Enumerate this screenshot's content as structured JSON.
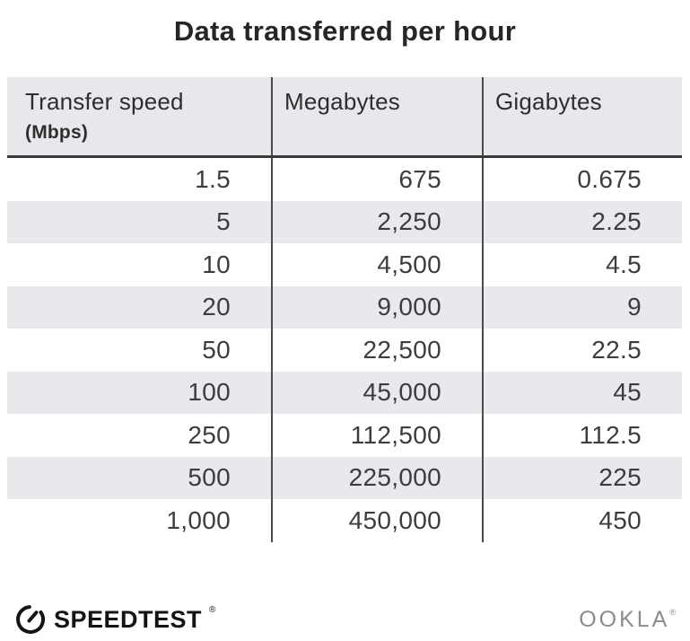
{
  "title": "Data transferred per hour",
  "table": {
    "headers": {
      "col1_line1": "Transfer speed",
      "col1_line2": "(Mbps)",
      "col2": "Megabytes",
      "col3": "Gigabytes"
    },
    "rows": [
      [
        "1.5",
        "675",
        "0.675"
      ],
      [
        "5",
        "2,250",
        "2.25"
      ],
      [
        "10",
        "4,500",
        "4.5"
      ],
      [
        "20",
        "9,000",
        "9"
      ],
      [
        "50",
        "22,500",
        "22.5"
      ],
      [
        "100",
        "45,000",
        "45"
      ],
      [
        "250",
        "112,500",
        "112.5"
      ],
      [
        "500",
        "225,000",
        "225"
      ],
      [
        "1,000",
        "450,000",
        "450"
      ]
    ]
  },
  "chart_data": {
    "type": "table",
    "title": "Data transferred per hour",
    "columns": [
      "Transfer speed (Mbps)",
      "Megabytes",
      "Gigabytes"
    ],
    "rows": [
      [
        1.5,
        675,
        0.675
      ],
      [
        5,
        2250,
        2.25
      ],
      [
        10,
        4500,
        4.5
      ],
      [
        20,
        9000,
        9
      ],
      [
        50,
        22500,
        22.5
      ],
      [
        100,
        45000,
        45
      ],
      [
        250,
        112500,
        112.5
      ],
      [
        500,
        225000,
        225
      ],
      [
        1000,
        450000,
        450
      ]
    ]
  },
  "footer": {
    "speedtest_text": "SPEEDTEST",
    "speedtest_trademark": "®",
    "ookla_text": "OOKLA",
    "ookla_trademark": "®"
  },
  "colors": {
    "header_bg": "#e8e7ec",
    "stripe_bg": "#e9e8ed",
    "divider": "#4a4a4a",
    "header_border": "#3a3a3a",
    "title_text": "#262626",
    "cell_text": "#3d3d3d",
    "logo_black": "#141414",
    "ookla_gray": "#8b8b8b"
  }
}
